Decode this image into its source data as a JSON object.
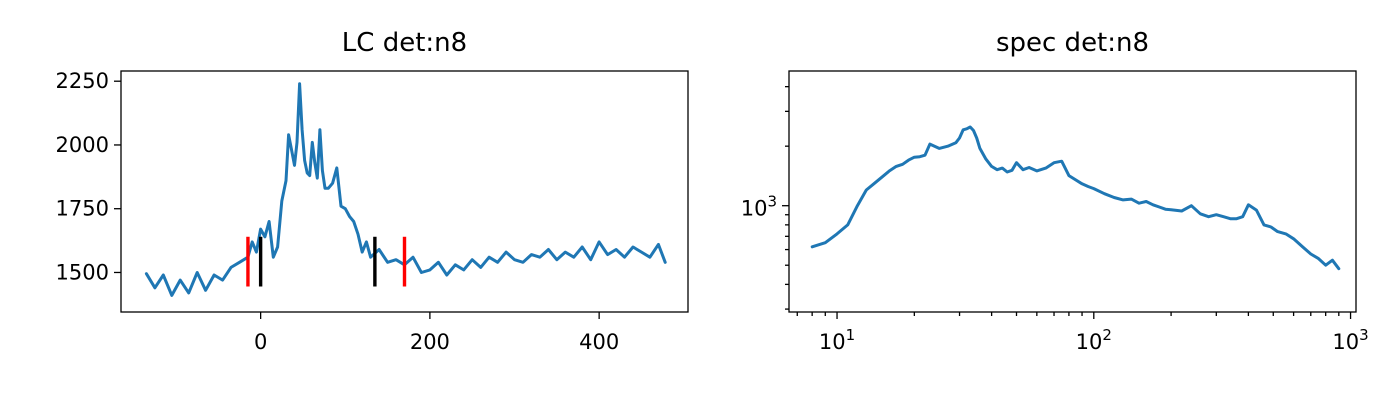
{
  "chart_data": [
    {
      "type": "line",
      "title": "LC det:n8",
      "xlabel": "",
      "ylabel": "",
      "xlim": [
        -165,
        505
      ],
      "ylim": [
        1345,
        2290
      ],
      "xticks": [
        0,
        200,
        400
      ],
      "yticks": [
        1500,
        1750,
        2000,
        2250
      ],
      "grid": false,
      "series": [
        {
          "color": "#1f77b4",
          "x": [
            -135,
            -125,
            -115,
            -105,
            -95,
            -85,
            -75,
            -65,
            -55,
            -45,
            -35,
            -25,
            -15,
            -10,
            -5,
            0,
            5,
            10,
            15,
            20,
            25,
            30,
            33,
            36,
            40,
            43,
            46,
            49,
            52,
            55,
            58,
            61,
            64,
            67,
            70,
            73,
            76,
            80,
            85,
            90,
            95,
            100,
            105,
            110,
            115,
            120,
            125,
            130,
            140,
            150,
            160,
            170,
            180,
            190,
            200,
            210,
            220,
            230,
            240,
            250,
            260,
            270,
            280,
            290,
            300,
            310,
            320,
            330,
            340,
            350,
            360,
            370,
            380,
            390,
            400,
            410,
            420,
            430,
            440,
            450,
            460,
            470,
            478
          ],
          "y": [
            1495,
            1440,
            1490,
            1410,
            1470,
            1420,
            1500,
            1430,
            1490,
            1470,
            1520,
            1540,
            1560,
            1620,
            1580,
            1670,
            1640,
            1700,
            1560,
            1600,
            1780,
            1860,
            2040,
            1990,
            1920,
            2010,
            2240,
            2060,
            1940,
            1890,
            1880,
            2010,
            1930,
            1870,
            2060,
            1900,
            1830,
            1830,
            1850,
            1910,
            1760,
            1750,
            1720,
            1700,
            1650,
            1580,
            1620,
            1560,
            1590,
            1540,
            1550,
            1530,
            1560,
            1500,
            1510,
            1540,
            1490,
            1530,
            1510,
            1550,
            1520,
            1560,
            1540,
            1580,
            1550,
            1540,
            1570,
            1560,
            1590,
            1550,
            1580,
            1560,
            1600,
            1550,
            1620,
            1570,
            1590,
            1560,
            1600,
            1580,
            1560,
            1610,
            1540
          ]
        }
      ],
      "vlines": [
        {
          "x": -15,
          "color": "#ff0000",
          "ymin": 1445,
          "ymax": 1640
        },
        {
          "x": 0,
          "color": "#000000",
          "ymin": 1445,
          "ymax": 1640
        },
        {
          "x": 135,
          "color": "#000000",
          "ymin": 1445,
          "ymax": 1640
        },
        {
          "x": 170,
          "color": "#ff0000",
          "ymin": 1445,
          "ymax": 1640
        }
      ]
    },
    {
      "type": "line",
      "title": "spec det:n8",
      "xlabel": "",
      "ylabel": "",
      "xscale": "log",
      "yscale": "log",
      "xlim": [
        6.5,
        1050
      ],
      "ylim": [
        290,
        4800
      ],
      "xticks": [
        10,
        100,
        1000
      ],
      "xtick_labels": [
        {
          "base": "10",
          "exp": "1"
        },
        {
          "base": "10",
          "exp": "2"
        },
        {
          "base": "10",
          "exp": "3"
        }
      ],
      "yticks": [
        1000
      ],
      "ytick_labels": [
        {
          "base": "10",
          "exp": "3"
        }
      ],
      "grid": false,
      "series": [
        {
          "color": "#1f77b4",
          "x": [
            8,
            9,
            10,
            11,
            12,
            13,
            14,
            15,
            16,
            17,
            18,
            19,
            20,
            21,
            22,
            23,
            25,
            27,
            29,
            30,
            31,
            32,
            33,
            34,
            35,
            36,
            38,
            40,
            42,
            44,
            46,
            48,
            50,
            53,
            56,
            60,
            65,
            70,
            75,
            80,
            85,
            90,
            95,
            100,
            110,
            120,
            130,
            140,
            150,
            160,
            170,
            180,
            190,
            200,
            220,
            240,
            260,
            280,
            300,
            320,
            340,
            360,
            380,
            400,
            430,
            460,
            490,
            520,
            560,
            600,
            650,
            700,
            750,
            800,
            850,
            900
          ],
          "y": [
            620,
            650,
            720,
            800,
            1000,
            1200,
            1300,
            1400,
            1500,
            1580,
            1620,
            1700,
            1760,
            1770,
            1800,
            2050,
            1950,
            2000,
            2080,
            2200,
            2420,
            2450,
            2500,
            2400,
            2200,
            1950,
            1720,
            1580,
            1520,
            1550,
            1480,
            1510,
            1650,
            1520,
            1560,
            1500,
            1550,
            1650,
            1680,
            1420,
            1350,
            1290,
            1250,
            1220,
            1150,
            1100,
            1070,
            1080,
            1030,
            1050,
            1010,
            985,
            960,
            955,
            940,
            1000,
            910,
            880,
            900,
            880,
            860,
            860,
            880,
            1010,
            950,
            800,
            780,
            740,
            720,
            680,
            620,
            570,
            540,
            500,
            530,
            480
          ]
        }
      ]
    }
  ]
}
